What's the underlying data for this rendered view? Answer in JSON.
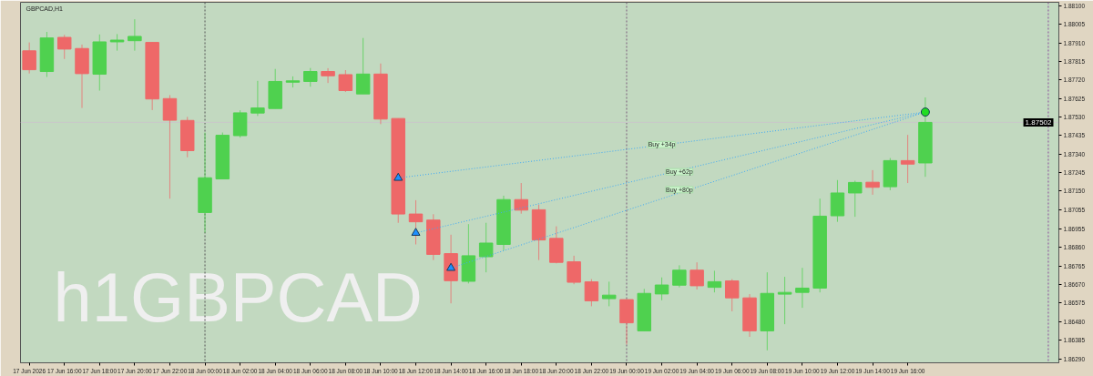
{
  "chart_data": {
    "type": "candlestick",
    "title": "GBPCAD,H1",
    "x": [
      "2026-06-17T14:00",
      "2026-06-17T15:00",
      "2026-06-17T16:00",
      "2026-06-17T17:00",
      "2026-06-17T18:00",
      "2026-06-17T19:00",
      "2026-06-17T20:00",
      "2026-06-17T21:00",
      "2026-06-17T22:00",
      "2026-06-17T23:00",
      "2026-06-18T00:00",
      "2026-06-18T01:00",
      "2026-06-18T02:00",
      "2026-06-18T03:00",
      "2026-06-18T04:00",
      "2026-06-18T05:00",
      "2026-06-18T06:00",
      "2026-06-18T07:00",
      "2026-06-18T08:00",
      "2026-06-18T09:00",
      "2026-06-18T10:00",
      "2026-06-18T11:00",
      "2026-06-18T12:00",
      "2026-06-18T13:00",
      "2026-06-18T14:00",
      "2026-06-18T15:00",
      "2026-06-18T16:00",
      "2026-06-18T17:00",
      "2026-06-18T18:00",
      "2026-06-18T19:00",
      "2026-06-18T20:00",
      "2026-06-18T21:00",
      "2026-06-18T22:00",
      "2026-06-18T23:00",
      "2026-06-19T00:00",
      "2026-06-19T01:00",
      "2026-06-19T02:00",
      "2026-06-19T03:00",
      "2026-06-19T04:00",
      "2026-06-19T05:00",
      "2026-06-19T06:00",
      "2026-06-19T07:00",
      "2026-06-19T08:00",
      "2026-06-19T09:00",
      "2026-06-19T10:00",
      "2026-06-19T11:00",
      "2026-06-19T12:00",
      "2026-06-19T13:00",
      "2026-06-19T14:00",
      "2026-06-19T15:00",
      "2026-06-19T16:00",
      "2026-06-19T17:00"
    ],
    "ohlc": [
      [
        1.87869,
        1.87912,
        1.87753,
        1.87772
      ],
      [
        1.87763,
        1.87966,
        1.87735,
        1.87935
      ],
      [
        1.87938,
        1.87951,
        1.87827,
        1.87878
      ],
      [
        1.87881,
        1.87901,
        1.87576,
        1.87752
      ],
      [
        1.87749,
        1.87953,
        1.87665,
        1.87915
      ],
      [
        1.87915,
        1.87955,
        1.8787,
        1.87924
      ],
      [
        1.87921,
        1.88031,
        1.8787,
        1.87943
      ],
      [
        1.87912,
        1.87912,
        1.87565,
        1.87622
      ],
      [
        1.87624,
        1.87642,
        1.87111,
        1.87513
      ],
      [
        1.87512,
        1.8753,
        1.87323,
        1.87357
      ],
      [
        1.8704,
        1.8745,
        1.86936,
        1.87218
      ],
      [
        1.87212,
        1.8745,
        1.87212,
        1.87436
      ],
      [
        1.87434,
        1.87564,
        1.87424,
        1.87551
      ],
      [
        1.8755,
        1.87715,
        1.87535,
        1.87576
      ],
      [
        1.87573,
        1.87776,
        1.87573,
        1.87712
      ],
      [
        1.87708,
        1.87738,
        1.87681,
        1.87715
      ],
      [
        1.87712,
        1.87781,
        1.87685,
        1.87763
      ],
      [
        1.87763,
        1.8778,
        1.87704,
        1.87741
      ],
      [
        1.87747,
        1.8777,
        1.87658,
        1.87665
      ],
      [
        1.87648,
        1.87935,
        1.87648,
        1.8775
      ],
      [
        1.8775,
        1.87804,
        1.87493,
        1.87519
      ],
      [
        1.87522,
        1.87522,
        1.86987,
        1.87032
      ],
      [
        1.87032,
        1.87103,
        1.86876,
        1.86992
      ],
      [
        1.87001,
        1.87031,
        1.86796,
        1.86825
      ],
      [
        1.86829,
        1.86926,
        1.86574,
        1.8669
      ],
      [
        1.86687,
        1.8698,
        1.86676,
        1.86818
      ],
      [
        1.86813,
        1.86987,
        1.86733,
        1.86883
      ],
      [
        1.86876,
        1.87126,
        1.86846,
        1.87106
      ],
      [
        1.87106,
        1.87191,
        1.87034,
        1.87052
      ],
      [
        1.87054,
        1.8708,
        1.86796,
        1.86899
      ],
      [
        1.86907,
        1.86969,
        1.86779,
        1.86784
      ],
      [
        1.86787,
        1.86818,
        1.86672,
        1.86682
      ],
      [
        1.86684,
        1.86698,
        1.86559,
        1.86587
      ],
      [
        1.86598,
        1.86685,
        1.86559,
        1.86616
      ],
      [
        1.86593,
        1.86593,
        1.86363,
        1.86474
      ],
      [
        1.86433,
        1.86648,
        1.86433,
        1.86625
      ],
      [
        1.86622,
        1.86707,
        1.8659,
        1.86668
      ],
      [
        1.86667,
        1.86769,
        1.86656,
        1.86744
      ],
      [
        1.86744,
        1.86784,
        1.86645,
        1.86664
      ],
      [
        1.86656,
        1.86741,
        1.8663,
        1.86685
      ],
      [
        1.86689,
        1.86698,
        1.86533,
        1.86602
      ],
      [
        1.86602,
        1.86621,
        1.86402,
        1.86433
      ],
      [
        1.86433,
        1.86733,
        1.86333,
        1.86625
      ],
      [
        1.86621,
        1.8671,
        1.86467,
        1.8663
      ],
      [
        1.8663,
        1.86756,
        1.86551,
        1.86652
      ],
      [
        1.86652,
        1.87111,
        1.8663,
        1.87021
      ],
      [
        1.87023,
        1.87206,
        1.86992,
        1.8714
      ],
      [
        1.8714,
        1.87203,
        1.87018,
        1.87194
      ],
      [
        1.87195,
        1.87257,
        1.87131,
        1.87169
      ],
      [
        1.87172,
        1.87319,
        1.87154,
        1.87306
      ],
      [
        1.87306,
        1.87438,
        1.87191,
        1.87288
      ],
      [
        1.87294,
        1.8763,
        1.87223,
        1.87502
      ]
    ],
    "colors": [
      "#ee6868",
      "#4fd14f",
      "#ee6868",
      "#ee6868",
      "#4fd14f",
      "#4fd14f",
      "#4fd14f",
      "#ee6868",
      "#ee6868",
      "#ee6868",
      "#4fd14f",
      "#4fd14f",
      "#4fd14f",
      "#4fd14f",
      "#4fd14f",
      "#4fd14f",
      "#4fd14f",
      "#ee6868",
      "#ee6868",
      "#4fd14f",
      "#ee6868",
      "#ee6868",
      "#ee6868",
      "#ee6868",
      "#ee6868",
      "#4fd14f",
      "#4fd14f",
      "#4fd14f",
      "#ee6868",
      "#ee6868",
      "#ee6868",
      "#ee6868",
      "#ee6868",
      "#4fd14f",
      "#ee6868",
      "#4fd14f",
      "#4fd14f",
      "#4fd14f",
      "#ee6868",
      "#4fd14f",
      "#ee6868",
      "#ee6868",
      "#4fd14f",
      "#4fd14f",
      "#4fd14f",
      "#4fd14f",
      "#4fd14f",
      "#4fd14f",
      "#ee6868",
      "#4fd14f",
      "#ee6868",
      "#4fd14f"
    ],
    "series": [
      {
        "type": "line",
        "x": [
          "2026-06-18T11:00",
          "2026-06-19T17:00"
        ],
        "values": [
          1.87217,
          1.87555
        ],
        "color": "#3fa9f5",
        "line_style": "dotted"
      },
      {
        "type": "line",
        "x": [
          "2026-06-18T12:00",
          "2026-06-19T17:00"
        ],
        "values": [
          1.86935,
          1.87555
        ],
        "color": "#3fa9f5",
        "line_style": "dotted"
      },
      {
        "type": "line",
        "x": [
          "2026-06-18T14:00",
          "2026-06-19T17:00"
        ],
        "values": [
          1.86755,
          1.87555
        ],
        "color": "#3fa9f5",
        "line_style": "dotted"
      },
      {
        "type": "scatter",
        "x": [
          "2026-06-18T11:00",
          "2026-06-18T12:00",
          "2026-06-18T14:00"
        ],
        "values": [
          1.87217,
          1.86935,
          1.86755
        ],
        "color": "#1e90ff",
        "marker": "triangle"
      },
      {
        "type": "scatter",
        "x": [
          "2026-06-19T17:00"
        ],
        "values": [
          1.87555
        ],
        "color": "#22dd22",
        "marker": "circle"
      }
    ],
    "annotations": [
      "h1GBPCAD",
      {
        "text": "Buy +34p",
        "x": "2026-06-19T02:00",
        "y": 1.87388
      },
      {
        "text": "Buy +62p",
        "x": "2026-06-19T03:00",
        "y": 1.87249
      },
      {
        "text": "Buy +80p",
        "x": "2026-06-19T03:00",
        "y": 1.87157
      }
    ],
    "ref_lines": [
      {
        "axis": "x",
        "value": "2026-06-18T00:00",
        "color": "#555555",
        "line_style": "dashed"
      },
      {
        "axis": "x",
        "value": "2026-06-19T00:00",
        "color": "#7a5a7a",
        "line_style": "dashed"
      },
      {
        "axis": "x",
        "value": "2026-06-20T00:00",
        "color": "#8a4a9a",
        "line_style": "dashed"
      },
      {
        "axis": "y",
        "value": 1.87502,
        "label": "1.87502",
        "color": "#c8c8c8",
        "line_style": "solid"
      }
    ],
    "xlim": [
      "2026-06-17T13:30",
      "2026-06-20T00:36"
    ],
    "xticks": [
      {
        "value": "2026-06-17T14:00",
        "label": "17 Jun 2026"
      },
      {
        "value": "2026-06-17T16:00",
        "label": "17 Jun 16:00"
      },
      {
        "value": "2026-06-17T18:00",
        "label": "17 Jun 18:00"
      },
      {
        "value": "2026-06-17T20:00",
        "label": "17 Jun 20:00"
      },
      {
        "value": "2026-06-17T22:00",
        "label": "17 Jun 22:00"
      },
      {
        "value": "2026-06-18T00:00",
        "label": "18 Jun 00:00"
      },
      {
        "value": "2026-06-18T02:00",
        "label": "18 Jun 02:00"
      },
      {
        "value": "2026-06-18T04:00",
        "label": "18 Jun 04:00"
      },
      {
        "value": "2026-06-18T06:00",
        "label": "18 Jun 06:00"
      },
      {
        "value": "2026-06-18T08:00",
        "label": "18 Jun 08:00"
      },
      {
        "value": "2026-06-18T10:00",
        "label": "18 Jun 10:00"
      },
      {
        "value": "2026-06-18T12:00",
        "label": "18 Jun 12:00"
      },
      {
        "value": "2026-06-18T14:00",
        "label": "18 Jun 14:00"
      },
      {
        "value": "2026-06-18T16:00",
        "label": "18 Jun 16:00"
      },
      {
        "value": "2026-06-18T18:00",
        "label": "18 Jun 18:00"
      },
      {
        "value": "2026-06-18T20:00",
        "label": "18 Jun 20:00"
      },
      {
        "value": "2026-06-18T22:00",
        "label": "18 Jun 22:00"
      },
      {
        "value": "2026-06-19T00:00",
        "label": "19 Jun 00:00"
      },
      {
        "value": "2026-06-19T02:00",
        "label": "19 Jun 02:00"
      },
      {
        "value": "2026-06-19T04:00",
        "label": "19 Jun 04:00"
      },
      {
        "value": "2026-06-19T06:00",
        "label": "19 Jun 06:00"
      },
      {
        "value": "2026-06-19T08:00",
        "label": "19 Jun 08:00"
      },
      {
        "value": "2026-06-19T10:00",
        "label": "19 Jun 10:00"
      },
      {
        "value": "2026-06-19T12:00",
        "label": "19 Jun 12:00"
      },
      {
        "value": "2026-06-19T14:00",
        "label": "19 Jun 14:00"
      },
      {
        "value": "2026-06-19T16:00",
        "label": "19 Jun 16:00"
      }
    ],
    "ylim": [
      1.86269,
      1.88118
    ],
    "yticks": [
      {
        "value": 1.881,
        "label": "1.88100"
      },
      1.88005,
      {
        "value": 1.8791,
        "label": "1.87910"
      },
      1.87815,
      {
        "value": 1.8772,
        "label": "1.87720"
      },
      1.87625,
      {
        "value": 1.8753,
        "label": "1.87530"
      },
      1.87435,
      {
        "value": 1.8734,
        "label": "1.87340"
      },
      1.87245,
      {
        "value": 1.8715,
        "label": "1.87150"
      },
      1.87055,
      1.86955,
      {
        "value": 1.8686,
        "label": "1.86860"
      },
      1.86765,
      {
        "value": 1.8667,
        "label": "1.86670"
      },
      1.86575,
      {
        "value": 1.8648,
        "label": "1.86480"
      },
      1.86385,
      {
        "value": 1.8629,
        "label": "1.86290"
      }
    ],
    "grid": false
  }
}
